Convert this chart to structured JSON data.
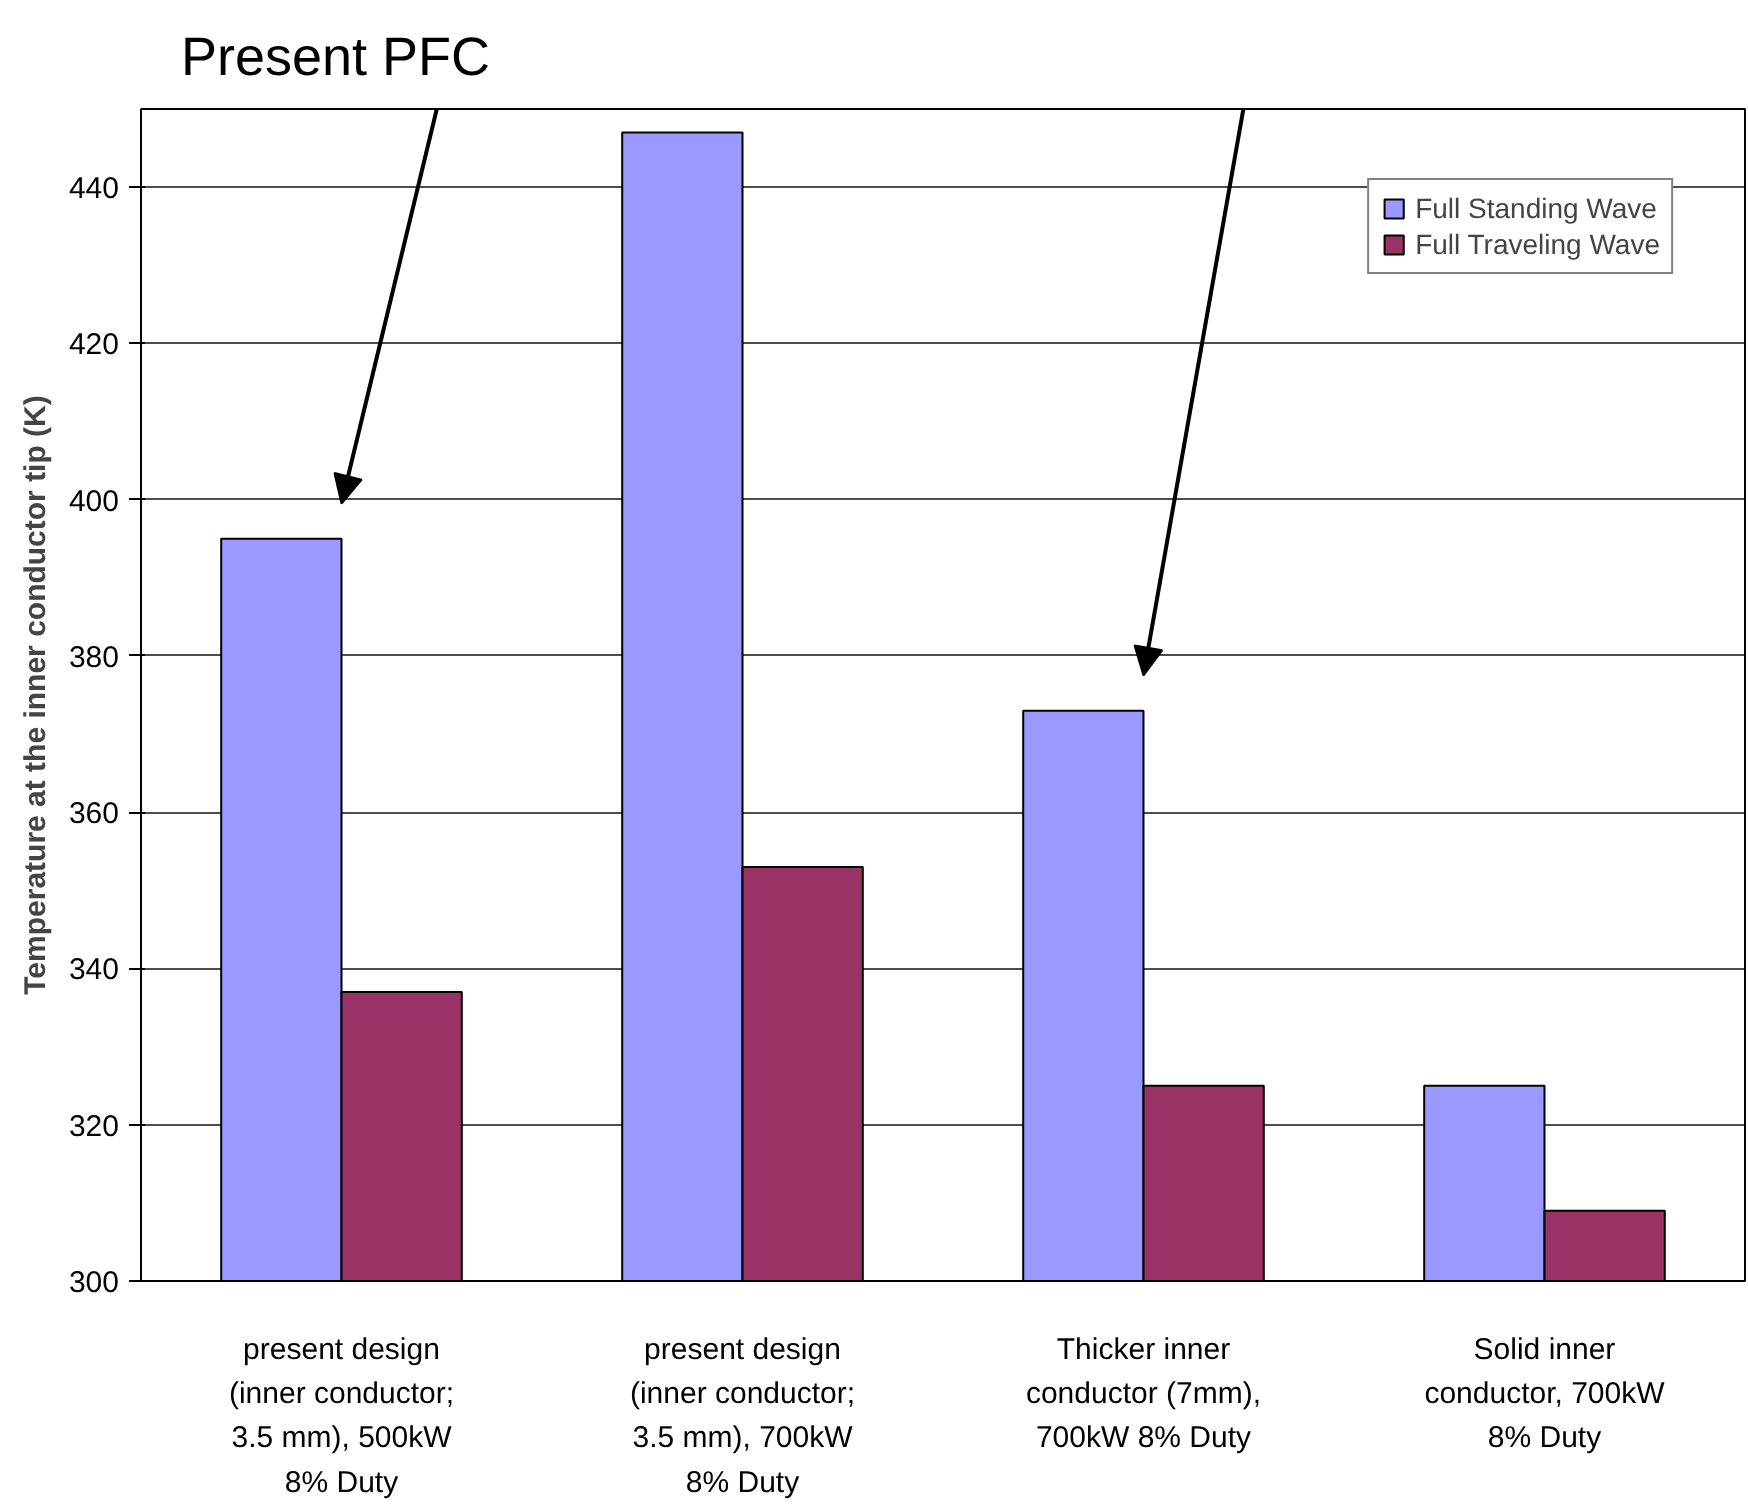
{
  "chart_data": {
    "type": "bar",
    "ylabel": "Temperature at the inner conductor tip (K)",
    "categories": [
      "present design (inner conductor; 3.5 mm), 500kW 8% Duty",
      "present design (inner conductor; 3.5 mm), 700kW 8% Duty",
      "Thicker inner conductor (7mm), 700kW 8% Duty",
      "Solid inner conductor, 700kW 8% Duty"
    ],
    "series": [
      {
        "name": "Full Standing Wave",
        "color": "#9999ff",
        "values": [
          395,
          447,
          373,
          325
        ]
      },
      {
        "name": "Full Traveling Wave",
        "color": "#993366",
        "values": [
          337,
          353,
          325,
          309
        ]
      }
    ],
    "ylim": [
      300,
      450
    ],
    "yticks": [
      300,
      320,
      340,
      360,
      380,
      400,
      420,
      440
    ],
    "grid": "y",
    "legend": "top right",
    "annotations": [
      "Present PFC"
    ]
  }
}
